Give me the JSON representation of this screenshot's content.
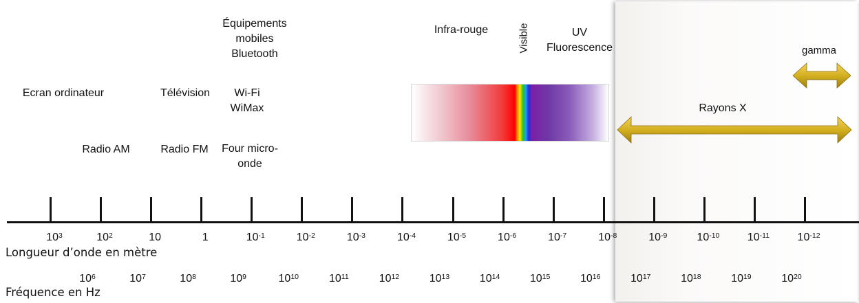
{
  "sources_left": {
    "ecran": "Ecran ordinateur",
    "radio_am": "Radio AM",
    "television": "Télévision",
    "radio_fm": "Radio FM",
    "mobiles": "Équipements\nmobiles\nBluetooth",
    "wifi": "Wi-Fi\nWiMax",
    "four": "Four micro-\nonde"
  },
  "spectrum": {
    "infrarouge": "Infra-rouge",
    "visible": "Visible",
    "uv": "UV\nFluorescence"
  },
  "high_energy": {
    "gamma": "gamma",
    "rayons_x": "Rayons X",
    "arrow_color": "#d4b020"
  },
  "wavelength": {
    "title": "Longueur d’onde en mètre",
    "ticks": [
      {
        "b": "10",
        "e": "3"
      },
      {
        "b": "10",
        "e": "2"
      },
      {
        "b": "10",
        "e": ""
      },
      {
        "b": "1",
        "e": ""
      },
      {
        "b": "10",
        "e": "-1"
      },
      {
        "b": "10",
        "e": "-2"
      },
      {
        "b": "10",
        "e": "-3"
      },
      {
        "b": "10",
        "e": "-4"
      },
      {
        "b": "10",
        "e": "-5"
      },
      {
        "b": "10",
        "e": "-6"
      },
      {
        "b": "10",
        "e": "-7"
      },
      {
        "b": "10",
        "e": "-8"
      },
      {
        "b": "10",
        "e": "-9"
      },
      {
        "b": "10",
        "e": "-10"
      },
      {
        "b": "10",
        "e": "-11"
      },
      {
        "b": "10",
        "e": "-12"
      }
    ]
  },
  "frequency": {
    "title": "Fréquence en Hz",
    "ticks": [
      {
        "b": "10",
        "e": "6"
      },
      {
        "b": "10",
        "e": "7"
      },
      {
        "b": "10",
        "e": "8"
      },
      {
        "b": "10",
        "e": "9"
      },
      {
        "b": "10",
        "e": "10"
      },
      {
        "b": "10",
        "e": "11"
      },
      {
        "b": "10",
        "e": "12"
      },
      {
        "b": "10",
        "e": "13"
      },
      {
        "b": "10",
        "e": "14"
      },
      {
        "b": "10",
        "e": "15"
      },
      {
        "b": "10",
        "e": "16"
      },
      {
        "b": "10",
        "e": "17"
      },
      {
        "b": "10",
        "e": "18"
      },
      {
        "b": "10",
        "e": "19"
      },
      {
        "b": "10",
        "e": "20"
      }
    ]
  }
}
